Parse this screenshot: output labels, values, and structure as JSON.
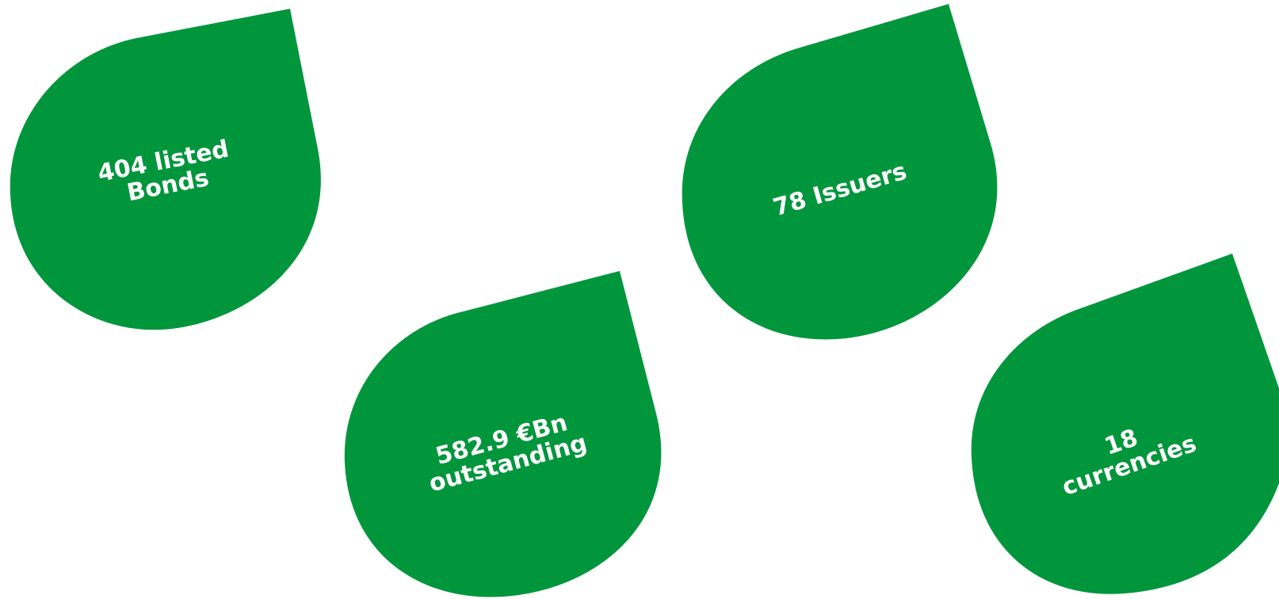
{
  "colors": {
    "background": "#ffffff",
    "drop_fill": "#02963c",
    "text": "#ffffff"
  },
  "stats": [
    {
      "line1": "404 listed",
      "line2": "Bonds"
    },
    {
      "line1": "78 Issuers"
    },
    {
      "line1": "582.9 €Bn",
      "line2": "outstanding"
    },
    {
      "line1": "18",
      "line2": "currencies"
    }
  ]
}
